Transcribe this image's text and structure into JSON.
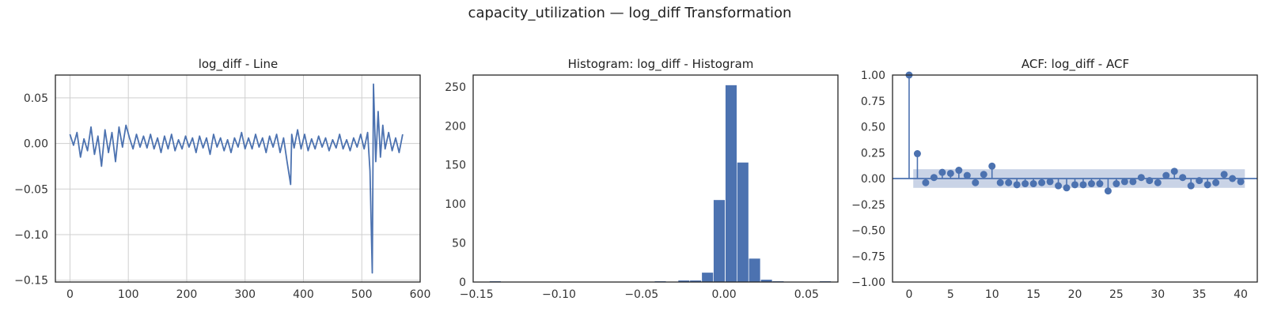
{
  "figure": {
    "title": "capacity_utilization — log_diff Transformation"
  },
  "colors": {
    "series": "#4c72b0",
    "band": "#c9d3e6",
    "grid": "#cfcfcf",
    "frame": "#262626"
  },
  "chart_data": [
    {
      "type": "line",
      "title": "log_diff - Line",
      "xlabel": "",
      "ylabel": "",
      "xlim": [
        -25,
        600
      ],
      "ylim": [
        -0.152,
        0.075
      ],
      "grid": true,
      "xticks": [
        0,
        100,
        200,
        300,
        400,
        500,
        600
      ],
      "xtick_labels": [
        "0",
        "100",
        "200",
        "300",
        "400",
        "500",
        "600"
      ],
      "yticks": [
        0.05,
        0.0,
        -0.05,
        -0.1,
        -0.15
      ],
      "ytick_labels": [
        "0.05",
        "0.00",
        "−0.05",
        "−0.10",
        "−0.15"
      ],
      "series": [
        {
          "x": [
            0,
            6,
            12,
            18,
            24,
            30,
            36,
            42,
            48,
            54,
            60,
            66,
            72,
            78,
            84,
            90,
            96,
            102,
            108,
            114,
            120,
            126,
            132,
            138,
            144,
            150,
            156,
            162,
            168,
            174,
            180,
            186,
            192,
            198,
            204,
            210,
            216,
            222,
            228,
            234,
            240,
            246,
            252,
            258,
            264,
            270,
            276,
            282,
            288,
            294,
            300,
            306,
            312,
            318,
            324,
            330,
            336,
            342,
            348,
            354,
            360,
            366,
            372,
            378,
            380,
            384,
            390,
            396,
            402,
            408,
            414,
            420,
            426,
            432,
            438,
            444,
            450,
            456,
            462,
            468,
            474,
            480,
            486,
            492,
            498,
            504,
            510,
            514,
            518,
            520,
            524,
            528,
            532,
            536,
            540,
            546,
            552,
            558,
            564,
            570
          ],
          "y": [
            0.01,
            -0.002,
            0.012,
            -0.015,
            0.005,
            -0.008,
            0.018,
            -0.012,
            0.008,
            -0.025,
            0.015,
            -0.01,
            0.012,
            -0.02,
            0.018,
            -0.004,
            0.02,
            0.006,
            -0.006,
            0.01,
            -0.004,
            0.008,
            -0.005,
            0.01,
            -0.006,
            0.006,
            -0.01,
            0.008,
            -0.006,
            0.01,
            -0.008,
            0.004,
            -0.006,
            0.008,
            -0.004,
            0.006,
            -0.01,
            0.008,
            -0.005,
            0.006,
            -0.012,
            0.01,
            -0.004,
            0.006,
            -0.008,
            0.004,
            -0.01,
            0.006,
            -0.004,
            0.012,
            -0.006,
            0.006,
            -0.006,
            0.01,
            -0.004,
            0.006,
            -0.01,
            0.008,
            -0.004,
            0.01,
            -0.01,
            0.006,
            -0.02,
            -0.045,
            0.01,
            -0.005,
            0.015,
            -0.006,
            0.01,
            -0.008,
            0.005,
            -0.006,
            0.008,
            -0.004,
            0.006,
            -0.008,
            0.004,
            -0.005,
            0.01,
            -0.006,
            0.004,
            -0.008,
            0.006,
            -0.004,
            0.01,
            -0.006,
            0.012,
            -0.03,
            -0.142,
            0.065,
            -0.02,
            0.035,
            -0.015,
            0.02,
            -0.006,
            0.012,
            -0.008,
            0.006,
            -0.01,
            0.01
          ]
        }
      ]
    },
    {
      "type": "bar",
      "title": "Histogram: log_diff - Histogram",
      "xlabel": "",
      "ylabel": "",
      "xlim": [
        -0.152,
        0.069
      ],
      "ylim": [
        0,
        265
      ],
      "grid": false,
      "xticks": [
        -0.15,
        -0.1,
        -0.05,
        0.0,
        0.05
      ],
      "xtick_labels": [
        "−0.15",
        "−0.10",
        "−0.05",
        "0.00",
        "0.05"
      ],
      "yticks": [
        0,
        50,
        100,
        150,
        200,
        250
      ],
      "ytick_labels": [
        "0",
        "50",
        "100",
        "150",
        "200",
        "250"
      ],
      "bin_width": 0.00714,
      "bin_starts": [
        -0.142,
        -0.1349,
        -0.1277,
        -0.1206,
        -0.1134,
        -0.1063,
        -0.0991,
        -0.092,
        -0.0849,
        -0.0777,
        -0.0706,
        -0.0634,
        -0.0563,
        -0.0491,
        -0.042,
        -0.0349,
        -0.0277,
        -0.0206,
        -0.0134,
        -0.0063,
        0.0009,
        0.008,
        0.0151,
        0.0223,
        0.0294,
        0.0366,
        0.0437,
        0.0509,
        0.058
      ],
      "values": [
        1,
        0,
        0,
        0,
        0,
        0,
        0,
        0,
        0,
        0,
        0,
        0,
        0,
        0,
        1,
        0,
        2,
        2,
        12,
        105,
        252,
        153,
        30,
        3,
        1,
        0,
        0,
        0,
        1
      ]
    },
    {
      "type": "scatter",
      "title": "ACF: log_diff - ACF",
      "xlabel": "",
      "ylabel": "",
      "xlim": [
        -2,
        42
      ],
      "ylim": [
        -1.0,
        1.0
      ],
      "grid": false,
      "xticks": [
        0,
        5,
        10,
        15,
        20,
        25,
        30,
        35,
        40
      ],
      "xtick_labels": [
        "0",
        "5",
        "10",
        "15",
        "20",
        "25",
        "30",
        "35",
        "40"
      ],
      "yticks": [
        1.0,
        0.75,
        0.5,
        0.25,
        0.0,
        -0.25,
        -0.5,
        -0.75,
        -1.0
      ],
      "ytick_labels": [
        "1.00",
        "0.75",
        "0.50",
        "0.25",
        "0.00",
        "−0.25",
        "−0.50",
        "−0.75",
        "−1.00"
      ],
      "confidence_band": [
        -0.09,
        0.09
      ],
      "lags": [
        0,
        1,
        2,
        3,
        4,
        5,
        6,
        7,
        8,
        9,
        10,
        11,
        12,
        13,
        14,
        15,
        16,
        17,
        18,
        19,
        20,
        21,
        22,
        23,
        24,
        25,
        26,
        27,
        28,
        29,
        30,
        31,
        32,
        33,
        34,
        35,
        36,
        37,
        38,
        39,
        40
      ],
      "values": [
        1.0,
        0.24,
        -0.04,
        0.01,
        0.06,
        0.05,
        0.08,
        0.03,
        -0.04,
        0.04,
        0.12,
        -0.04,
        -0.04,
        -0.06,
        -0.05,
        -0.05,
        -0.04,
        -0.03,
        -0.07,
        -0.09,
        -0.06,
        -0.06,
        -0.05,
        -0.05,
        -0.12,
        -0.05,
        -0.03,
        -0.03,
        0.01,
        -0.02,
        -0.04,
        0.03,
        0.07,
        0.01,
        -0.07,
        -0.02,
        -0.06,
        -0.04,
        0.04,
        0.0,
        -0.03
      ]
    }
  ]
}
